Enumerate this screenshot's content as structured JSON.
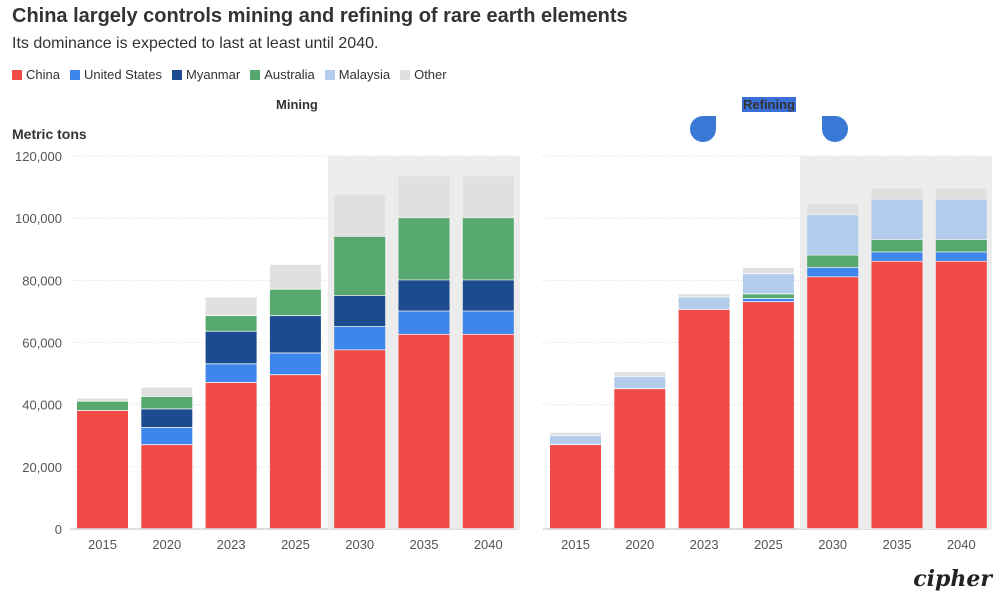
{
  "title": "China largely controls mining and refining of rare earth elements",
  "subtitle": "Its dominance is expected to last at least until 2040.",
  "legend": [
    {
      "label": "China",
      "color": "#f04b47"
    },
    {
      "label": "United States",
      "color": "#3f86ec"
    },
    {
      "label": "Myanmar",
      "color": "#1d4b8f"
    },
    {
      "label": "Australia",
      "color": "#56a86f"
    },
    {
      "label": "Malaysia",
      "color": "#b4ccec"
    },
    {
      "label": "Other",
      "color": "#e0e0e0"
    }
  ],
  "ylabel": "Metric tons",
  "logo": "cipher",
  "chart_data": [
    {
      "type": "bar",
      "stacked": true,
      "title": "Mining",
      "ylabel": "Metric tons",
      "ylim": [
        0,
        120000
      ],
      "yticks": [
        "0",
        "20,000",
        "40,000",
        "60,000",
        "80,000",
        "100,000",
        "120,000"
      ],
      "categories": [
        "2015",
        "2020",
        "2023",
        "2025",
        "2030",
        "2035",
        "2040"
      ],
      "projection_categories": [
        "2030",
        "2035",
        "2040"
      ],
      "series": [
        {
          "name": "China",
          "values": [
            38000,
            27000,
            47000,
            49500,
            57500,
            62500,
            62500
          ]
        },
        {
          "name": "United States",
          "values": [
            0,
            5500,
            6000,
            7000,
            7500,
            7500,
            7500
          ]
        },
        {
          "name": "Myanmar",
          "values": [
            0,
            6000,
            10500,
            12000,
            10000,
            10000,
            10000
          ]
        },
        {
          "name": "Australia",
          "values": [
            3000,
            4000,
            5000,
            8500,
            19000,
            20000,
            20000
          ]
        },
        {
          "name": "Malaysia",
          "values": [
            0,
            0,
            0,
            0,
            0,
            0,
            0
          ]
        },
        {
          "name": "Other",
          "values": [
            1000,
            3000,
            6000,
            8000,
            13500,
            13500,
            13500
          ]
        }
      ]
    },
    {
      "type": "bar",
      "stacked": true,
      "title": "Refining",
      "ylim": [
        0,
        120000
      ],
      "categories": [
        "2015",
        "2020",
        "2023",
        "2025",
        "2030",
        "2035",
        "2040"
      ],
      "projection_categories": [
        "2030",
        "2035",
        "2040"
      ],
      "series": [
        {
          "name": "China",
          "values": [
            27000,
            45000,
            70500,
            73000,
            81000,
            86000,
            86000
          ]
        },
        {
          "name": "United States",
          "values": [
            0,
            0,
            0,
            1000,
            3000,
            3000,
            3000
          ]
        },
        {
          "name": "Myanmar",
          "values": [
            0,
            0,
            0,
            0,
            0,
            0,
            0
          ]
        },
        {
          "name": "Australia",
          "values": [
            0,
            0,
            0,
            1500,
            4000,
            4000,
            4000
          ]
        },
        {
          "name": "Malaysia",
          "values": [
            3000,
            4000,
            4000,
            6500,
            13000,
            13000,
            13000
          ]
        },
        {
          "name": "Other",
          "values": [
            1000,
            1500,
            1000,
            2000,
            3500,
            3500,
            3500
          ]
        }
      ]
    }
  ]
}
